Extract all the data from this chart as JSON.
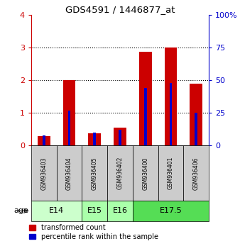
{
  "title": "GDS4591 / 1446877_at",
  "samples": [
    "GSM936403",
    "GSM936404",
    "GSM936405",
    "GSM936402",
    "GSM936400",
    "GSM936401",
    "GSM936406"
  ],
  "red_values": [
    0.28,
    2.01,
    0.37,
    0.55,
    2.88,
    3.01,
    1.9
  ],
  "blue_percentiles": [
    8,
    27,
    10,
    12,
    44,
    48,
    25
  ],
  "ylim_left": [
    0,
    4
  ],
  "ylim_right": [
    0,
    100
  ],
  "left_ticks": [
    0,
    1,
    2,
    3,
    4
  ],
  "right_ticks": [
    0,
    25,
    50,
    75,
    100
  ],
  "left_color": "#cc0000",
  "right_color": "#0000cc",
  "background_color": "#ffffff",
  "sample_bg_color": "#cccccc",
  "age_label": "age",
  "legend_red": "transformed count",
  "legend_blue": "percentile rank within the sample",
  "age_groups": [
    {
      "label": "E14",
      "start": 0,
      "end": 1,
      "color": "#ccffcc"
    },
    {
      "label": "E15",
      "start": 2,
      "end": 2,
      "color": "#aaffaa"
    },
    {
      "label": "E16",
      "start": 3,
      "end": 3,
      "color": "#aaffaa"
    },
    {
      "label": "E17.5",
      "start": 4,
      "end": 6,
      "color": "#55dd55"
    }
  ]
}
